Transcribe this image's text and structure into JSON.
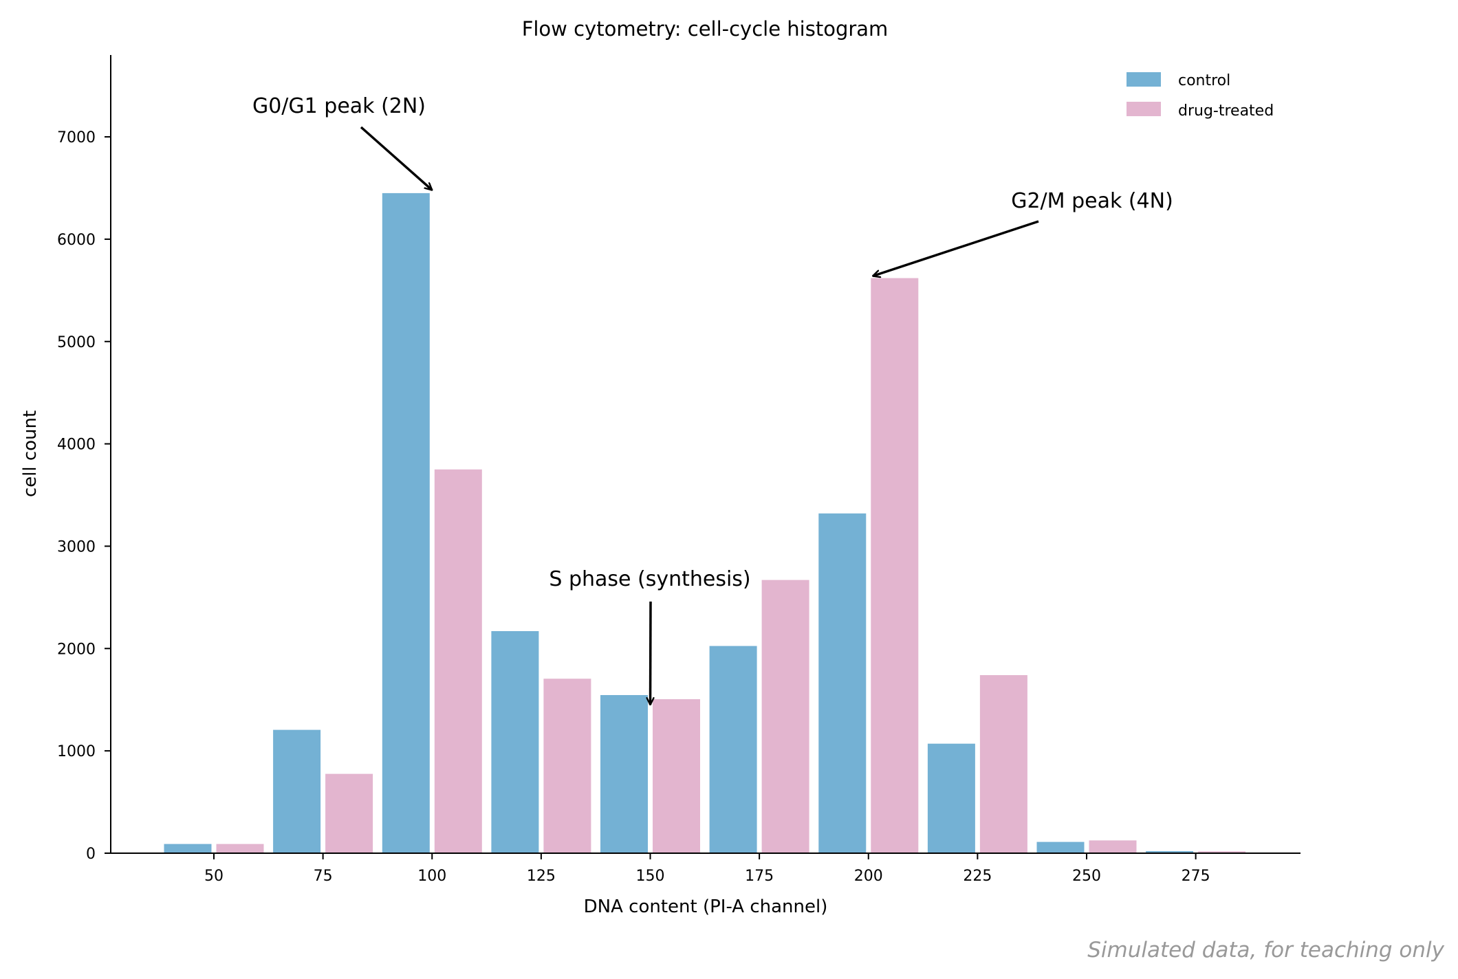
{
  "chart_data": {
    "type": "bar",
    "title": "Flow cytometry: cell-cycle histogram",
    "xlabel": "DNA content (PI-A channel)",
    "ylabel": "cell count",
    "x_ticks": [
      50,
      75,
      100,
      125,
      150,
      175,
      200,
      225,
      250,
      275
    ],
    "y_ticks": [
      0,
      1000,
      2000,
      3000,
      4000,
      5000,
      6000,
      7000
    ],
    "xlim": [
      25,
      300
    ],
    "ylim": [
      0,
      7800
    ],
    "categories": [
      50,
      75,
      100,
      125,
      150,
      175,
      200,
      225,
      250,
      275
    ],
    "series": [
      {
        "name": "control",
        "color": "#74b1d4",
        "values": [
          90,
          1205,
          6450,
          2170,
          1545,
          2025,
          3320,
          1070,
          110,
          20
        ]
      },
      {
        "name": "drug-treated",
        "color": "#e3b5cf",
        "values": [
          90,
          775,
          3750,
          1705,
          1505,
          2670,
          5620,
          1740,
          125,
          18
        ]
      }
    ],
    "legend_position": "top-right",
    "grid": false,
    "annotations": [
      {
        "text": "G0/G1 peak (2N)",
        "target_x": 100,
        "target_y": 6480
      },
      {
        "text": "S phase (synthesis)",
        "target_x": 150,
        "target_y": 1450
      },
      {
        "text": "G2/M peak (4N)",
        "target_x": 201,
        "target_y": 5640
      }
    ]
  },
  "footer_note": "Simulated data, for teaching only"
}
